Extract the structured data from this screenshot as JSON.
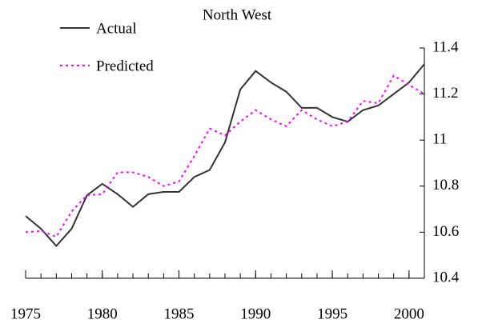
{
  "chart_data": {
    "type": "line",
    "title": "North West",
    "x": [
      1975,
      1976,
      1977,
      1978,
      1979,
      1980,
      1981,
      1982,
      1983,
      1984,
      1985,
      1986,
      1987,
      1988,
      1989,
      1990,
      1991,
      1992,
      1993,
      1994,
      1995,
      1996,
      1997,
      1998,
      1999,
      2000,
      2001
    ],
    "series": [
      {
        "name": "Actual",
        "color": "#333333",
        "dash": false,
        "values": [
          10.67,
          10.615,
          10.54,
          10.615,
          10.76,
          10.81,
          10.765,
          10.71,
          10.765,
          10.775,
          10.775,
          10.84,
          10.87,
          10.99,
          11.22,
          11.3,
          11.25,
          11.21,
          11.14,
          11.14,
          11.1,
          11.08,
          11.13,
          11.15,
          11.2,
          11.25,
          11.33
        ]
      },
      {
        "name": "Predicted",
        "color": "#ff00ff",
        "dash": true,
        "values": [
          10.6,
          10.605,
          10.58,
          10.69,
          10.76,
          10.765,
          10.86,
          10.86,
          10.84,
          10.8,
          10.82,
          10.93,
          11.05,
          11.02,
          11.08,
          11.13,
          11.09,
          11.06,
          11.13,
          11.09,
          11.06,
          11.08,
          11.17,
          11.16,
          11.28,
          11.24,
          11.2
        ]
      }
    ],
    "xlim": [
      1975,
      2001
    ],
    "xticks": [
      1975,
      1980,
      1985,
      1990,
      1995,
      2000
    ],
    "ylim": [
      10.4,
      11.4
    ],
    "yticks": [
      10.4,
      10.6,
      {
        "value": 10.8,
        "label": "10.8"
      },
      11,
      11.2,
      11.4
    ],
    "y_axis_side": "right",
    "grid": false,
    "legend": "upper left"
  }
}
